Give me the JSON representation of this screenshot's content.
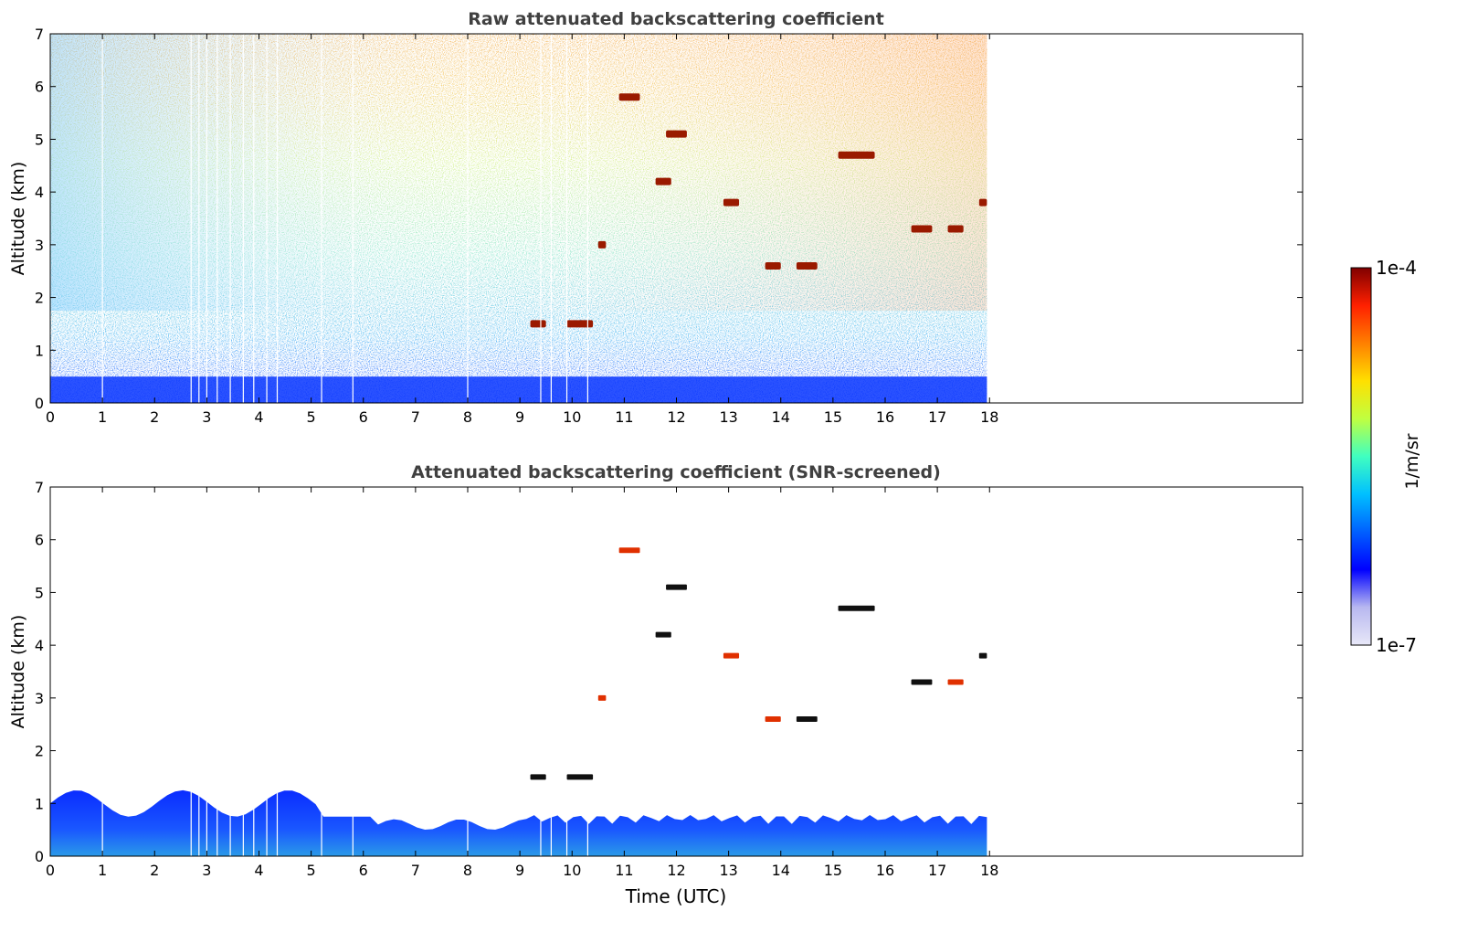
{
  "chart_data": [
    {
      "type": "heatmap",
      "title": "Raw attenuated backscattering coefficient",
      "xlabel": "",
      "ylabel": "Altitude (km)",
      "xlim": [
        0,
        24
      ],
      "ylim": [
        0,
        7
      ],
      "xticks": [
        "0",
        "1",
        "2",
        "3",
        "4",
        "5",
        "6",
        "7",
        "8",
        "9",
        "10",
        "11",
        "12",
        "13",
        "14",
        "15",
        "16",
        "17",
        "18"
      ],
      "yticks": [
        "0",
        "1",
        "2",
        "3",
        "4",
        "5",
        "6",
        "7"
      ],
      "data_extent_x": [
        0,
        17.95
      ],
      "scale": "log",
      "cloud_features": [
        {
          "t_start": 10.9,
          "t_end": 11.3,
          "alt_km": 5.8
        },
        {
          "t_start": 11.8,
          "t_end": 12.2,
          "alt_km": 5.1
        },
        {
          "t_start": 11.6,
          "t_end": 11.9,
          "alt_km": 4.2
        },
        {
          "t_start": 12.9,
          "t_end": 13.2,
          "alt_km": 3.8
        },
        {
          "t_start": 15.1,
          "t_end": 15.8,
          "alt_km": 4.7
        },
        {
          "t_start": 16.5,
          "t_end": 16.9,
          "alt_km": 3.3
        },
        {
          "t_start": 17.2,
          "t_end": 17.5,
          "alt_km": 3.3
        },
        {
          "t_start": 17.8,
          "t_end": 17.95,
          "alt_km": 3.8
        },
        {
          "t_start": 14.3,
          "t_end": 14.7,
          "alt_km": 2.6
        },
        {
          "t_start": 13.7,
          "t_end": 14.0,
          "alt_km": 2.6
        },
        {
          "t_start": 9.2,
          "t_end": 9.5,
          "alt_km": 1.5
        },
        {
          "t_start": 9.9,
          "t_end": 10.4,
          "alt_km": 1.5
        },
        {
          "t_start": 10.5,
          "t_end": 10.65,
          "alt_km": 3.0
        }
      ]
    },
    {
      "type": "heatmap",
      "title": "Attenuated backscattering coefficient (SNR-screened)",
      "xlabel": "Time (UTC)",
      "ylabel": "Altitude (km)",
      "xlim": [
        0,
        24
      ],
      "ylim": [
        0,
        7
      ],
      "xticks": [
        "0",
        "1",
        "2",
        "3",
        "4",
        "5",
        "6",
        "7",
        "8",
        "9",
        "10",
        "11",
        "12",
        "13",
        "14",
        "15",
        "16",
        "17",
        "18"
      ],
      "yticks": [
        "0",
        "1",
        "2",
        "3",
        "4",
        "5",
        "6",
        "7"
      ],
      "data_extent_x": [
        0,
        17.95
      ],
      "scale": "log"
    }
  ],
  "colorbar": {
    "label": "1/m/sr",
    "min_label": "1e-7",
    "max_label": "1e-4",
    "colormap": "jet",
    "colors": [
      "#e8e8f8",
      "#b8b8f0",
      "#0000ff",
      "#0060ff",
      "#00c0ff",
      "#40ffc0",
      "#c0ff40",
      "#ffe000",
      "#ff8000",
      "#ff2000",
      "#800000"
    ]
  }
}
